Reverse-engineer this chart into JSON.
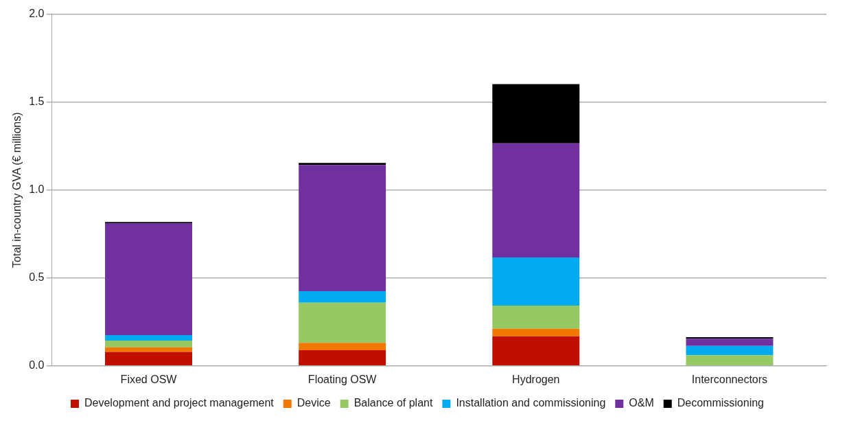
{
  "chart_data": {
    "type": "bar",
    "stacked": true,
    "ylabel": "Total in-country GVA (€ millions)",
    "categories": [
      "Fixed OSW",
      "Floating OSW",
      "Hydrogen",
      "Interconnectors"
    ],
    "series": [
      {
        "name": "Development and project management",
        "color": "#c00f00",
        "values": [
          0.079,
          0.089,
          0.168,
          null
        ]
      },
      {
        "name": "Device",
        "color": "#f07800",
        "values": [
          0.027,
          0.042,
          0.043,
          0
        ]
      },
      {
        "name": "Balance of plant",
        "color": "#96c864",
        "values": [
          0.038,
          0.228,
          0.132,
          0.061
        ]
      },
      {
        "name": "Installation and commissioning",
        "color": "#00aaee",
        "values": [
          0.031,
          0.066,
          0.273,
          0.052
        ]
      },
      {
        "name": "O&M",
        "color": "#7030a0",
        "values": [
          0.636,
          0.717,
          0.649,
          0.041
        ]
      },
      {
        "name": "Decommissioning",
        "color": "#000000",
        "values": [
          0.007,
          0.012,
          0.337,
          0.009
        ]
      }
    ],
    "ylim": [
      0,
      2
    ],
    "yticks": [
      {
        "value": 0,
        "label": "0.0"
      },
      {
        "value": 0.5,
        "label": "0.5"
      },
      {
        "value": 1,
        "label": "1.0"
      },
      {
        "value": 1.5,
        "label": "1.5"
      },
      {
        "value": 2,
        "label": "2.0"
      }
    ],
    "grid": "y",
    "legend": "bottom"
  }
}
